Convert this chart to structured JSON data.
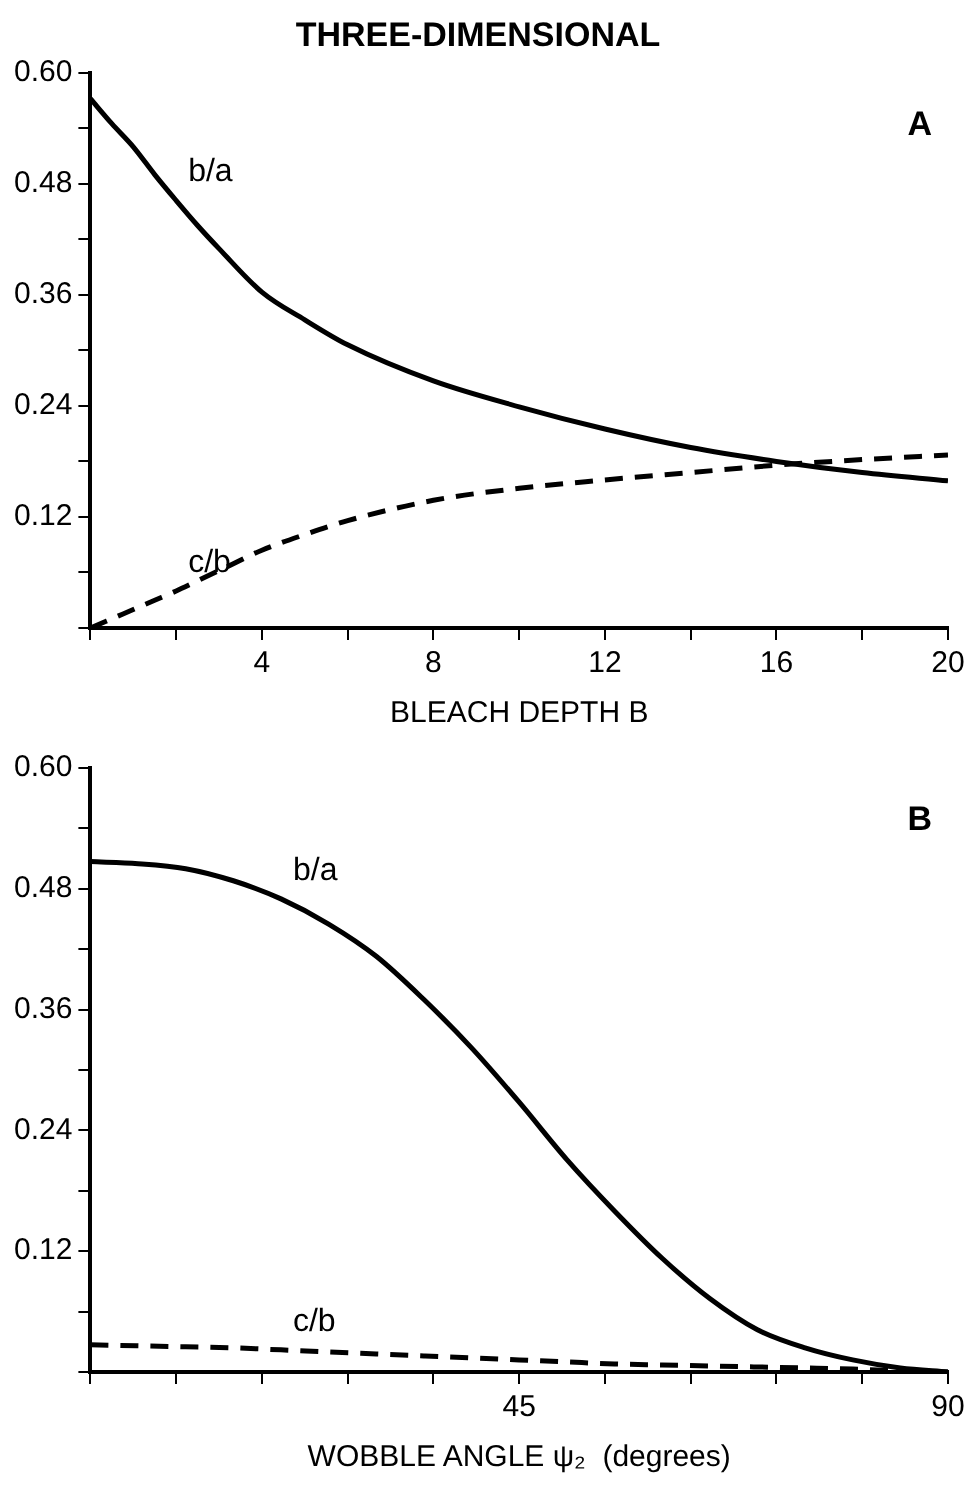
{
  "chart_data": [
    {
      "type": "line",
      "title": "THREE-DIMENSIONAL",
      "xlabel": "BLEACH DEPTH B",
      "xlim": [
        0,
        20
      ],
      "ylim": [
        0,
        0.6
      ],
      "xticks": [
        {
          "value": 0,
          "label": null
        },
        {
          "value": 2,
          "label": null
        },
        4,
        {
          "value": 6,
          "label": null
        },
        8,
        {
          "value": 10,
          "label": null
        },
        12,
        {
          "value": 14,
          "label": null
        },
        16,
        {
          "value": 18,
          "label": null
        },
        20
      ],
      "yticks": [
        {
          "value": 0,
          "label": null
        },
        {
          "value": 0.06,
          "label": null
        },
        {
          "value": 0.12,
          "label": "0.12"
        },
        {
          "value": 0.18,
          "label": null
        },
        {
          "value": 0.24,
          "label": "0.24"
        },
        {
          "value": 0.3,
          "label": null
        },
        {
          "value": 0.36,
          "label": "0.36"
        },
        {
          "value": 0.42,
          "label": null
        },
        {
          "value": 0.48,
          "label": "0.48"
        },
        {
          "value": 0.54,
          "label": null
        },
        {
          "value": 0.6,
          "label": "0.60"
        }
      ],
      "x": [
        0,
        0.5,
        1,
        1.5,
        2,
        2.5,
        3,
        4,
        5,
        6,
        8,
        10,
        12,
        14,
        16,
        18,
        20
      ],
      "series": [
        {
          "name": "b/a",
          "color": "#000000",
          "line_style": "solid",
          "values": [
            0.572,
            0.545,
            0.52,
            0.49,
            0.462,
            0.435,
            0.41,
            0.363,
            0.333,
            0.306,
            0.267,
            0.239,
            0.215,
            0.195,
            0.18,
            0.168,
            0.159
          ]
        },
        {
          "name": "c/b",
          "color": "#000000",
          "line_style": "dashed",
          "values": [
            0,
            0.01,
            0.02,
            0.03,
            0.04,
            0.051,
            0.062,
            0.084,
            0.101,
            0.116,
            0.138,
            0.151,
            0.16,
            0.168,
            0.176,
            0.182,
            0.187
          ]
        }
      ],
      "annotations": [
        "A"
      ],
      "grid": false,
      "legend": false,
      "marker": "none"
    },
    {
      "type": "line",
      "xlabel": "WOBBLE ANGLE ψ₂  (degrees)",
      "xlim": [
        0,
        90
      ],
      "ylim": [
        0,
        0.6
      ],
      "xticks": [
        {
          "value": 0,
          "label": null
        },
        {
          "value": 9,
          "label": null
        },
        {
          "value": 18,
          "label": null
        },
        {
          "value": 27,
          "label": null
        },
        {
          "value": 36,
          "label": null
        },
        45,
        {
          "value": 54,
          "label": null
        },
        {
          "value": 63,
          "label": null
        },
        {
          "value": 72,
          "label": null
        },
        {
          "value": 81,
          "label": null
        },
        90
      ],
      "yticks": [
        {
          "value": 0,
          "label": null
        },
        {
          "value": 0.06,
          "label": null
        },
        {
          "value": 0.12,
          "label": "0.12"
        },
        {
          "value": 0.18,
          "label": null
        },
        {
          "value": 0.24,
          "label": "0.24"
        },
        {
          "value": 0.3,
          "label": null
        },
        {
          "value": 0.36,
          "label": "0.36"
        },
        {
          "value": 0.42,
          "label": null
        },
        {
          "value": 0.48,
          "label": "0.48"
        },
        {
          "value": 0.54,
          "label": null
        },
        {
          "value": 0.6,
          "label": "0.60"
        }
      ],
      "x": [
        0,
        5,
        10,
        15,
        20,
        25,
        30,
        35,
        40,
        45,
        50,
        55,
        60,
        65,
        70,
        75,
        80,
        85,
        90
      ],
      "series": [
        {
          "name": "b/a",
          "color": "#000000",
          "line_style": "solid",
          "values": [
            0.507,
            0.505,
            0.5,
            0.488,
            0.47,
            0.445,
            0.413,
            0.37,
            0.322,
            0.268,
            0.211,
            0.16,
            0.113,
            0.073,
            0.042,
            0.024,
            0.012,
            0.004,
            0
          ]
        },
        {
          "name": "c/b",
          "color": "#000000",
          "line_style": "dashed",
          "values": [
            0.027,
            0.026,
            0.025,
            0.024,
            0.022,
            0.02,
            0.018,
            0.016,
            0.014,
            0.012,
            0.01,
            0.008,
            0.007,
            0.006,
            0.005,
            0.004,
            0.003,
            0.001,
            0
          ]
        }
      ],
      "annotations": [
        "B"
      ],
      "grid": false,
      "legend": false,
      "marker": "none"
    }
  ]
}
